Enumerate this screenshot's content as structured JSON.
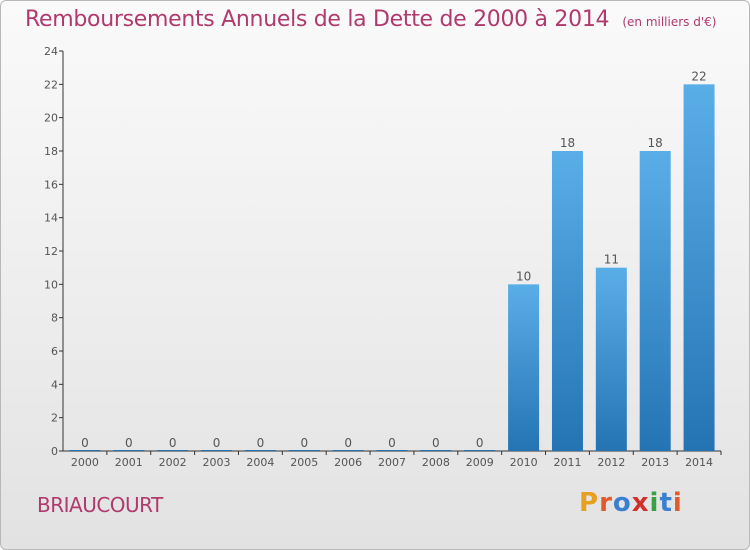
{
  "header": {
    "title": "Remboursements Annuels de la Dette de 2000 à 2014",
    "subtitle": "(en milliers d'€)"
  },
  "footer": {
    "place": "BRIAUCOURT",
    "logo_text": "Proxiti",
    "logo_colors": [
      "#e8a020",
      "#e05a2a",
      "#3a7fd0",
      "#d0302a",
      "#3aa040",
      "#3a7fd0",
      "#e05a2a"
    ]
  },
  "chart_data": {
    "type": "bar",
    "categories": [
      "2000",
      "2001",
      "2002",
      "2003",
      "2004",
      "2005",
      "2006",
      "2007",
      "2008",
      "2009",
      "2010",
      "2011",
      "2012",
      "2013",
      "2014"
    ],
    "values": [
      0,
      0,
      0,
      0,
      0,
      0,
      0,
      0,
      0,
      0,
      10,
      18,
      11,
      18,
      22
    ],
    "ylim": [
      0,
      24
    ],
    "yticks": [
      0,
      2,
      4,
      6,
      8,
      10,
      12,
      14,
      16,
      18,
      20,
      22,
      24
    ],
    "grid": false,
    "bar_color": "#3d8fd0"
  }
}
